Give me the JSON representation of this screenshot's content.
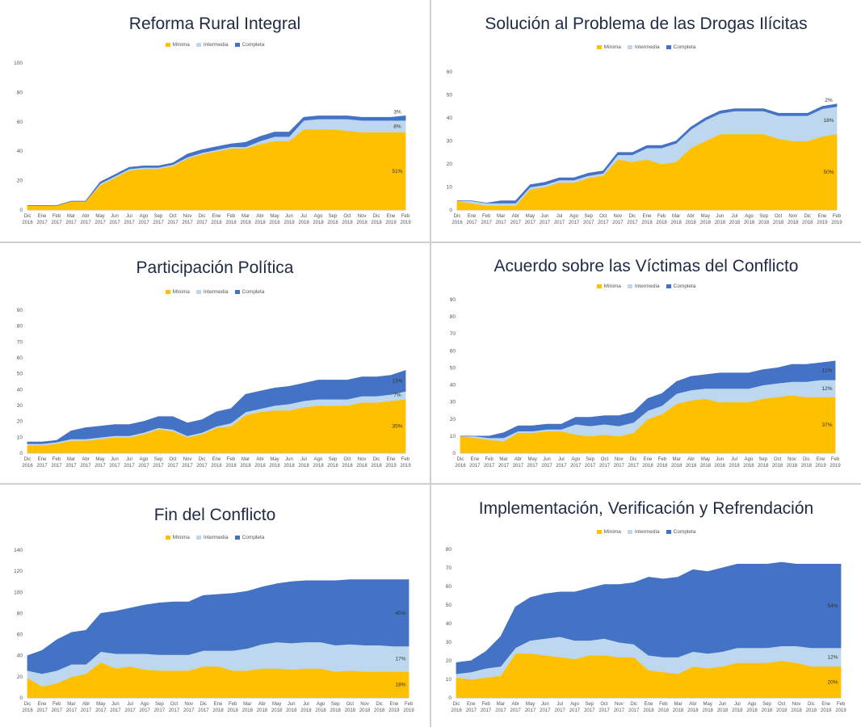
{
  "chart_data": [
    {
      "type": "area",
      "stacked": true,
      "title": "Reforma Rural Integral",
      "legend": [
        "Mínima",
        "Intermedia",
        "Completa"
      ],
      "legend_position": "top",
      "ylim": [
        0,
        100
      ],
      "yticks": [
        0,
        20,
        40,
        60,
        80,
        100
      ],
      "x": [
        "Dic 2016",
        "Ene 2017",
        "Feb 2017",
        "Mar 2017",
        "Abr 2017",
        "May 2017",
        "Jun 2017",
        "Jul 2017",
        "Ago 2017",
        "Sep 2017",
        "Oct 2017",
        "Nov 2017",
        "Dic 2017",
        "Ene 2018",
        "Feb 2018",
        "Mar 2018",
        "Abr 2018",
        "May 2018",
        "Jun 2018",
        "Jul 2018",
        "Ago 2018",
        "Sep 2018",
        "Oct 2018",
        "Nov 2018",
        "Dic 2018",
        "Ene 2019",
        "Feb 2019"
      ],
      "series": [
        {
          "name": "Mínima",
          "color": "#FFC000",
          "values": [
            3,
            3,
            3,
            6,
            6,
            17,
            22,
            27,
            28,
            28,
            30,
            35,
            38,
            40,
            42,
            42,
            45,
            47,
            47,
            55,
            55,
            55,
            54,
            53,
            53,
            53,
            53
          ]
        },
        {
          "name": "Intermedia",
          "color": "#BDD7EE",
          "values": [
            0,
            0,
            0,
            0,
            0,
            1,
            1,
            1,
            1,
            1,
            1,
            1,
            1,
            1,
            1,
            1,
            2,
            3,
            3,
            6,
            7,
            7,
            8,
            8,
            8,
            8,
            8
          ]
        },
        {
          "name": "Completa",
          "color": "#4472C4",
          "values": [
            0,
            0,
            0,
            0,
            0,
            1,
            1,
            1,
            1,
            1,
            1,
            2,
            2,
            2,
            2,
            3,
            3,
            3,
            3,
            2,
            2,
            2,
            2,
            2,
            2,
            2,
            3
          ]
        }
      ],
      "annotations": [
        "51%",
        "8%",
        "3%"
      ]
    },
    {
      "type": "area",
      "stacked": true,
      "title": "Solución al Problema de las Drogas Ilícitas",
      "legend": [
        "Mínima",
        "Intermedia",
        "Completa"
      ],
      "legend_position": "top",
      "ylim": [
        0,
        60
      ],
      "yticks": [
        0,
        10,
        20,
        30,
        40,
        50,
        60
      ],
      "x": [
        "Dic 2016",
        "Ene 2017",
        "Feb 2017",
        "Mar 2017",
        "Abr 2017",
        "May 2017",
        "Jun 2017",
        "Jul 2017",
        "Ago 2017",
        "Sep 2017",
        "Oct 2017",
        "Nov 2017",
        "Dic 2017",
        "Ene 2018",
        "Feb 2018",
        "Mar 2018",
        "Abr 2018",
        "May 2018",
        "Jun 2018",
        "Jul 2018",
        "Ago 2018",
        "Sep 2018",
        "Oct 2018",
        "Nov 2018",
        "Dic 2018",
        "Ene 2019",
        "Feb 2019"
      ],
      "series": [
        {
          "name": "Mínima",
          "color": "#FFC000",
          "values": [
            4,
            3,
            2,
            2,
            2,
            9,
            10,
            12,
            12,
            14,
            15,
            22,
            21,
            22,
            20,
            21,
            27,
            30,
            33,
            33,
            33,
            33,
            31,
            30,
            30,
            32,
            33
          ]
        },
        {
          "name": "Intermedia",
          "color": "#BDD7EE",
          "values": [
            0,
            1,
            1,
            1,
            1,
            1,
            1,
            1,
            1,
            1,
            1,
            2,
            3,
            5,
            7,
            8,
            8,
            9,
            9,
            10,
            10,
            10,
            10,
            11,
            11,
            12,
            12
          ]
        },
        {
          "name": "Completa",
          "color": "#4472C4",
          "values": [
            0,
            0,
            0,
            1,
            1,
            1,
            1,
            1,
            1,
            1,
            1,
            1,
            1,
            1,
            1,
            1,
            1,
            1,
            1,
            1,
            1,
            1,
            1,
            1,
            1,
            1,
            1
          ]
        }
      ],
      "annotations": [
        "50%",
        "18%",
        "2%"
      ]
    },
    {
      "type": "area",
      "stacked": true,
      "title": "Participación Política",
      "legend": [
        "Mínima",
        "Intermedia",
        "Completa"
      ],
      "legend_position": "top",
      "ylim": [
        0,
        90
      ],
      "yticks": [
        0,
        10,
        20,
        30,
        40,
        50,
        60,
        70,
        80,
        90
      ],
      "x": [
        "Dic 2016",
        "Ene 2017",
        "Feb 2017",
        "Mar 2017",
        "Abr 2017",
        "May 2017",
        "Jun 2017",
        "Jul 2017",
        "Ago 2017",
        "Sep 2017",
        "Oct 2017",
        "Nov 2017",
        "Dic 2017",
        "Ene 2018",
        "Feb 2018",
        "Mar 2018",
        "Abr 2018",
        "May 2018",
        "Jun 2018",
        "Jul 2018",
        "Ago 2018",
        "Sep 2018",
        "Oct 2018",
        "Nov 2018",
        "Dic 2018",
        "Ene 2019",
        "Feb 2019"
      ],
      "series": [
        {
          "name": "Mínima",
          "color": "#FFC000",
          "values": [
            5,
            5,
            6,
            8,
            8,
            9,
            10,
            10,
            12,
            15,
            14,
            10,
            12,
            16,
            17,
            24,
            26,
            27,
            27,
            29,
            30,
            30,
            30,
            32,
            32,
            33,
            34
          ]
        },
        {
          "name": "Intermedia",
          "color": "#BDD7EE",
          "values": [
            1,
            1,
            1,
            1,
            1,
            1,
            1,
            1,
            1,
            1,
            1,
            1,
            1,
            1,
            2,
            2,
            2,
            3,
            4,
            4,
            4,
            4,
            4,
            4,
            4,
            4,
            5
          ]
        },
        {
          "name": "Completa",
          "color": "#4472C4",
          "values": [
            1,
            1,
            1,
            5,
            7,
            7,
            7,
            7,
            7,
            7,
            8,
            8,
            8,
            9,
            9,
            11,
            11,
            11,
            11,
            11,
            12,
            12,
            12,
            12,
            12,
            12,
            13
          ]
        }
      ],
      "annotations": [
        "35%",
        "7%",
        "13%"
      ]
    },
    {
      "type": "area",
      "stacked": true,
      "title": "Acuerdo sobre las Víctimas del Conflicto",
      "legend": [
        "Mínima",
        "Intermedia",
        "Completa"
      ],
      "legend_position": "top",
      "ylim": [
        0,
        90
      ],
      "yticks": [
        0,
        10,
        20,
        30,
        40,
        50,
        60,
        70,
        80,
        90
      ],
      "x": [
        "Dic 2016",
        "Ene 2017",
        "Feb 2017",
        "Mar 2017",
        "Abr 2017",
        "May 2017",
        "Jun 2017",
        "Jul 2017",
        "Ago 2017",
        "Sep 2017",
        "Oct 2017",
        "Nov 2017",
        "Dic 2017",
        "Ene 2018",
        "Feb 2018",
        "Mar 2018",
        "Abr 2018",
        "May 2018",
        "Jun 2018",
        "Jul 2018",
        "Ago 2018",
        "Sep 2018",
        "Oct 2018",
        "Nov 2018",
        "Dic 2018",
        "Ene 2019",
        "Feb 2019"
      ],
      "series": [
        {
          "name": "Mínima",
          "color": "#FFC000",
          "values": [
            10,
            9,
            8,
            7,
            12,
            12,
            13,
            13,
            11,
            10,
            11,
            10,
            12,
            20,
            23,
            29,
            31,
            32,
            30,
            30,
            30,
            32,
            33,
            34,
            33,
            33,
            33
          ]
        },
        {
          "name": "Intermedia",
          "color": "#BDD7EE",
          "values": [
            0,
            1,
            1,
            2,
            1,
            1,
            1,
            1,
            6,
            6,
            6,
            6,
            6,
            5,
            5,
            6,
            6,
            6,
            8,
            8,
            8,
            8,
            8,
            8,
            9,
            10,
            10
          ]
        },
        {
          "name": "Completa",
          "color": "#4472C4",
          "values": [
            0,
            0,
            1,
            3,
            3,
            3,
            3,
            3,
            4,
            5,
            5,
            6,
            6,
            7,
            7,
            7,
            8,
            8,
            9,
            9,
            9,
            9,
            9,
            10,
            10,
            10,
            11
          ]
        }
      ],
      "annotations": [
        "37%",
        "12%",
        "11%"
      ]
    },
    {
      "type": "area",
      "stacked": true,
      "title": "Fin del Conflicto",
      "legend": [
        "Mínima",
        "Intermedia",
        "Completa"
      ],
      "legend_position": "top",
      "ylim": [
        0,
        140
      ],
      "yticks": [
        0,
        20,
        40,
        60,
        80,
        100,
        120,
        140
      ],
      "x": [
        "Dic 2016",
        "Ene 2017",
        "Feb 2017",
        "Mar 2017",
        "Abr 2017",
        "May 2017",
        "Jun 2017",
        "Jul 2017",
        "Ago 2017",
        "Sep 2017",
        "Oct 2017",
        "Nov 2017",
        "Dic 2017",
        "Ene 2018",
        "Feb 2018",
        "Mar 2018",
        "Abr 2018",
        "May 2018",
        "Jun 2018",
        "Jul 2018",
        "Ago 2018",
        "Sep 2018",
        "Oct 2018",
        "Nov 2018",
        "Dic 2018",
        "Ene 2019",
        "Feb 2019"
      ],
      "series": [
        {
          "name": "Mínima",
          "color": "#FFC000",
          "values": [
            19,
            11,
            14,
            20,
            23,
            34,
            28,
            30,
            27,
            26,
            26,
            26,
            30,
            30,
            26,
            26,
            28,
            28,
            27,
            28,
            28,
            25,
            26,
            25,
            25,
            25,
            25
          ]
        },
        {
          "name": "Intermedia",
          "color": "#BDD7EE",
          "values": [
            7,
            12,
            12,
            12,
            9,
            10,
            14,
            12,
            15,
            15,
            15,
            15,
            15,
            15,
            19,
            21,
            23,
            25,
            25,
            25,
            25,
            25,
            25,
            25,
            25,
            24,
            24
          ]
        },
        {
          "name": "Completa",
          "color": "#4472C4",
          "values": [
            14,
            22,
            29,
            30,
            32,
            36,
            40,
            43,
            46,
            49,
            50,
            50,
            52,
            53,
            54,
            54,
            54,
            55,
            58,
            58,
            58,
            61,
            61,
            62,
            62,
            63,
            63
          ]
        }
      ],
      "annotations": [
        "18%",
        "17%",
        "45%"
      ]
    },
    {
      "type": "area",
      "stacked": true,
      "title": "Implementación, Verificación y Refrendación",
      "legend": [
        "Mínima",
        "Intermedia",
        "Completa"
      ],
      "legend_position": "top",
      "ylim": [
        0,
        80
      ],
      "yticks": [
        0,
        10,
        20,
        30,
        40,
        50,
        60,
        70,
        80
      ],
      "x": [
        "Dic 2016",
        "Ene 2017",
        "Feb 2017",
        "Mar 2017",
        "Abr 2017",
        "May 2017",
        "Jun 2017",
        "Jul 2017",
        "Ago 2017",
        "Sep 2017",
        "Oct 2017",
        "Nov 2017",
        "Dic 2017",
        "Ene 2018",
        "Feb 2018",
        "Mar 2018",
        "Abr 2018",
        "May 2018",
        "Jun 2018",
        "Jul 2018",
        "Ago 2018",
        "Sep 2018",
        "Oct 2018",
        "Nov 2018",
        "Dic 2018",
        "Ene 2019",
        "Feb 2019"
      ],
      "series": [
        {
          "name": "Mínima",
          "color": "#FFC000",
          "values": [
            11,
            10,
            11,
            12,
            24,
            24,
            23,
            22,
            21,
            23,
            23,
            22,
            22,
            15,
            14,
            13,
            17,
            16,
            17,
            19,
            19,
            19,
            20,
            19,
            17,
            17,
            17
          ]
        },
        {
          "name": "Intermedia",
          "color": "#BDD7EE",
          "values": [
            2,
            4,
            5,
            5,
            3,
            7,
            9,
            11,
            10,
            8,
            9,
            8,
            7,
            8,
            8,
            9,
            8,
            8,
            8,
            8,
            8,
            8,
            8,
            9,
            10,
            10,
            10
          ]
        },
        {
          "name": "Completa",
          "color": "#4472C4",
          "values": [
            6,
            6,
            9,
            16,
            22,
            23,
            24,
            24,
            26,
            28,
            29,
            31,
            33,
            42,
            42,
            43,
            44,
            44,
            45,
            45,
            45,
            45,
            45,
            44,
            45,
            45,
            45
          ]
        }
      ],
      "annotations": [
        "20%",
        "12%",
        "54%"
      ]
    }
  ]
}
